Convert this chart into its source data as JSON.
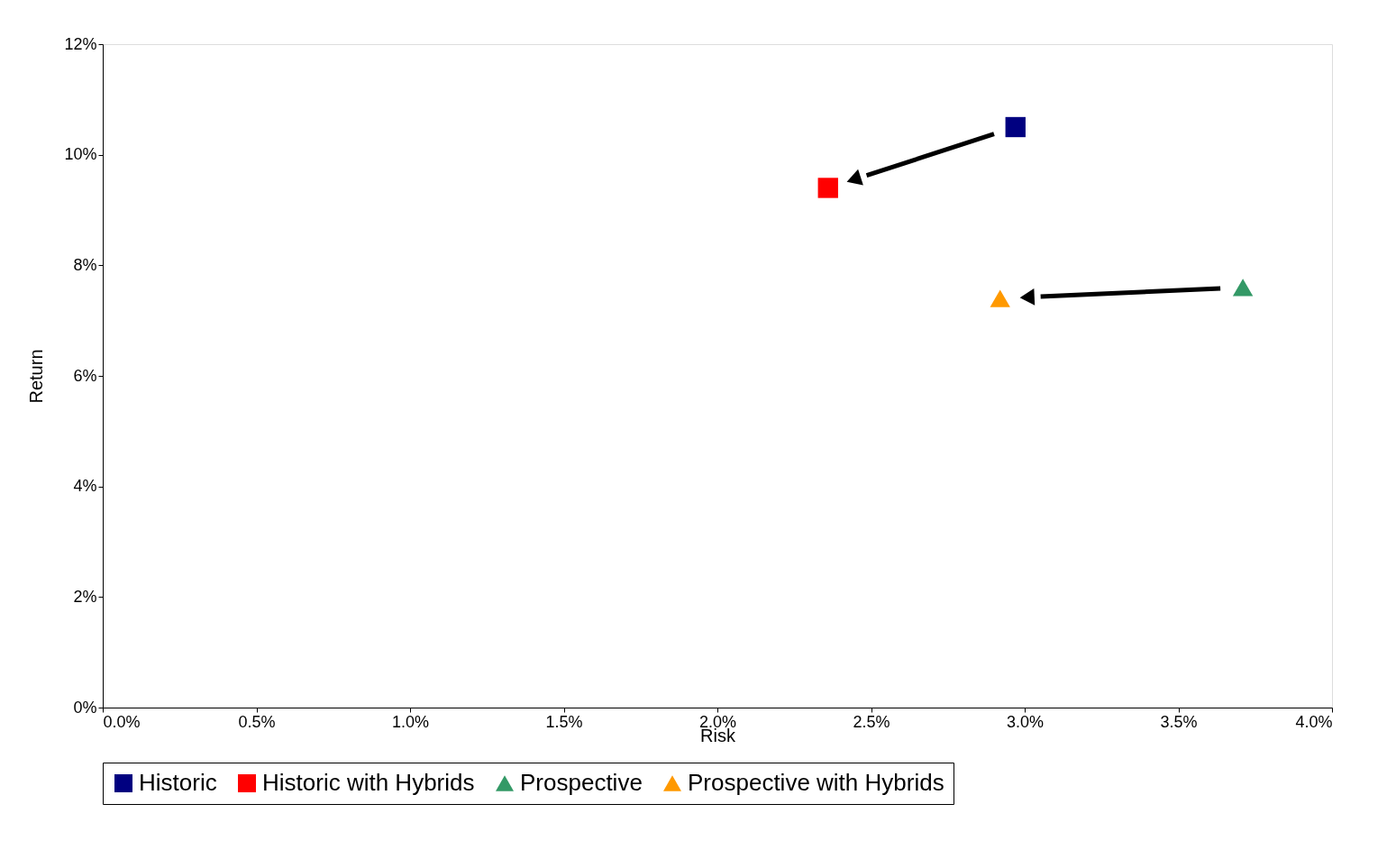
{
  "chart_data": {
    "type": "scatter",
    "xlabel": "Risk",
    "ylabel": "Return",
    "series": [
      {
        "name": "Historic",
        "color": "#000080",
        "marker": "square",
        "x": [
          2.97
        ],
        "values": [
          10.5
        ]
      },
      {
        "name": "Historic with Hybrids",
        "color": "#ff0000",
        "marker": "square",
        "x": [
          2.36
        ],
        "values": [
          9.4
        ]
      },
      {
        "name": "Prospective",
        "color": "#339966",
        "marker": "triangle",
        "x": [
          3.71
        ],
        "values": [
          7.6
        ]
      },
      {
        "name": "Prospective with Hybrids",
        "color": "#ff9900",
        "marker": "triangle",
        "x": [
          2.92
        ],
        "values": [
          7.4
        ]
      }
    ],
    "xlim": [
      0,
      4
    ],
    "ylim": [
      0,
      12
    ],
    "xticks": [
      {
        "value": 0,
        "label": "0.0%"
      },
      {
        "value": 0.5,
        "label": "0.5%"
      },
      {
        "value": 1,
        "label": "1.0%"
      },
      {
        "value": 1.5,
        "label": "1.5%"
      },
      {
        "value": 2,
        "label": "2.0%"
      },
      {
        "value": 2.5,
        "label": "2.5%"
      },
      {
        "value": 3,
        "label": "3.0%"
      },
      {
        "value": 3.5,
        "label": "3.5%"
      },
      {
        "value": 4,
        "label": "4.0%"
      }
    ],
    "yticks": [
      {
        "value": 0,
        "label": "0%"
      },
      {
        "value": 2,
        "label": "2%"
      },
      {
        "value": 4,
        "label": "4%"
      },
      {
        "value": 6,
        "label": "6%"
      },
      {
        "value": 8,
        "label": "8%"
      },
      {
        "value": 10,
        "label": "10%"
      },
      {
        "value": 12,
        "label": "12%"
      }
    ],
    "grid": false,
    "legend": "bottom"
  }
}
